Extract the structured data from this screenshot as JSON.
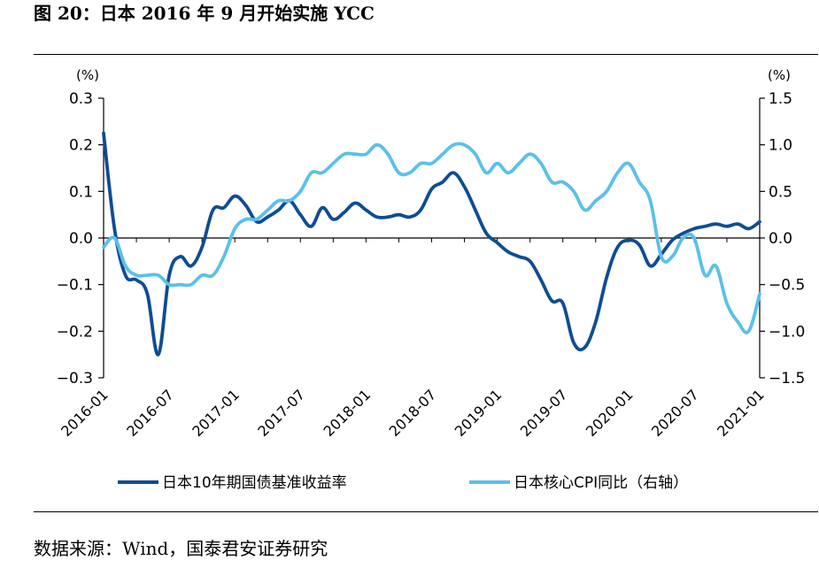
{
  "header": {
    "title": "图 20：日本 2016 年 9 月开始实施 YCC"
  },
  "footer": {
    "source": "数据来源：Wind，国泰君安证券研究"
  },
  "chart_data": {
    "type": "line",
    "title": "图 20：日本 2016 年 9 月开始实施 YCC",
    "x_tick_labels": [
      "2016-01",
      "2016-07",
      "2017-01",
      "2017-07",
      "2018-01",
      "2018-07",
      "2019-01",
      "2019-07",
      "2020-01",
      "2020-07",
      "2021-01"
    ],
    "x_range": [
      "2016-01",
      "2021-01"
    ],
    "left_axis": {
      "unit_label": "(%)",
      "ylim": [
        -0.3,
        0.3
      ],
      "tick_labels": [
        "0.3",
        "0.2",
        "0.1",
        "0.0",
        "−0.1",
        "−0.2",
        "−0.3"
      ],
      "ticks": [
        0.3,
        0.2,
        0.1,
        0.0,
        -0.1,
        -0.2,
        -0.3
      ]
    },
    "right_axis": {
      "unit_label": "(%)",
      "ylim": [
        -1.5,
        1.5
      ],
      "tick_labels": [
        "1.5",
        "1.0",
        "0.5",
        "0.0",
        "−0.5",
        "−1.0",
        "−1.5"
      ],
      "ticks": [
        1.5,
        1.0,
        0.5,
        0.0,
        -0.5,
        -1.0,
        -1.5
      ]
    },
    "legend_position": "bottom",
    "grid": false,
    "series": [
      {
        "name": "日本10年期国债基准收益率",
        "axis": "left",
        "color": "#0e4d92",
        "points": [
          [
            "2016-01",
            0.225
          ],
          [
            "2016-02",
            0.02
          ],
          [
            "2016-03",
            -0.08
          ],
          [
            "2016-04",
            -0.09
          ],
          [
            "2016-05",
            -0.12
          ],
          [
            "2016-06",
            -0.25
          ],
          [
            "2016-07",
            -0.08
          ],
          [
            "2016-08",
            -0.04
          ],
          [
            "2016-09",
            -0.06
          ],
          [
            "2016-10",
            -0.02
          ],
          [
            "2016-11",
            0.06
          ],
          [
            "2016-12",
            0.065
          ],
          [
            "2017-01",
            0.09
          ],
          [
            "2017-02",
            0.07
          ],
          [
            "2017-03",
            0.035
          ],
          [
            "2017-04",
            0.045
          ],
          [
            "2017-05",
            0.06
          ],
          [
            "2017-06",
            0.08
          ],
          [
            "2017-07",
            0.05
          ],
          [
            "2017-08",
            0.025
          ],
          [
            "2017-09",
            0.065
          ],
          [
            "2017-10",
            0.04
          ],
          [
            "2017-11",
            0.055
          ],
          [
            "2017-12",
            0.075
          ],
          [
            "2018-01",
            0.06
          ],
          [
            "2018-02",
            0.045
          ],
          [
            "2018-03",
            0.045
          ],
          [
            "2018-04",
            0.05
          ],
          [
            "2018-05",
            0.045
          ],
          [
            "2018-06",
            0.06
          ],
          [
            "2018-07",
            0.105
          ],
          [
            "2018-08",
            0.12
          ],
          [
            "2018-09",
            0.14
          ],
          [
            "2018-10",
            0.11
          ],
          [
            "2018-11",
            0.06
          ],
          [
            "2018-12",
            0.01
          ],
          [
            "2019-01",
            -0.01
          ],
          [
            "2019-02",
            -0.03
          ],
          [
            "2019-03",
            -0.04
          ],
          [
            "2019-04",
            -0.05
          ],
          [
            "2019-05",
            -0.09
          ],
          [
            "2019-06",
            -0.135
          ],
          [
            "2019-07",
            -0.14
          ],
          [
            "2019-08",
            -0.225
          ],
          [
            "2019-09",
            -0.235
          ],
          [
            "2019-10",
            -0.18
          ],
          [
            "2019-11",
            -0.085
          ],
          [
            "2019-12",
            -0.02
          ],
          [
            "2020-01",
            -0.005
          ],
          [
            "2020-02",
            -0.015
          ],
          [
            "2020-03",
            -0.06
          ],
          [
            "2020-04",
            -0.035
          ],
          [
            "2020-05",
            -0.005
          ],
          [
            "2020-06",
            0.01
          ],
          [
            "2020-07",
            0.02
          ],
          [
            "2020-08",
            0.025
          ],
          [
            "2020-09",
            0.03
          ],
          [
            "2020-10",
            0.025
          ],
          [
            "2020-11",
            0.03
          ],
          [
            "2020-12",
            0.02
          ],
          [
            "2021-01",
            0.035
          ]
        ]
      },
      {
        "name": "日本核心CPI同比（右轴）",
        "axis": "right",
        "color": "#5bc0ea",
        "points": [
          [
            "2016-01",
            -0.1
          ],
          [
            "2016-02",
            0.0
          ],
          [
            "2016-03",
            -0.3
          ],
          [
            "2016-04",
            -0.4
          ],
          [
            "2016-05",
            -0.4
          ],
          [
            "2016-06",
            -0.4
          ],
          [
            "2016-07",
            -0.5
          ],
          [
            "2016-08",
            -0.5
          ],
          [
            "2016-09",
            -0.5
          ],
          [
            "2016-10",
            -0.4
          ],
          [
            "2016-11",
            -0.4
          ],
          [
            "2016-12",
            -0.2
          ],
          [
            "2017-01",
            0.1
          ],
          [
            "2017-02",
            0.2
          ],
          [
            "2017-03",
            0.2
          ],
          [
            "2017-04",
            0.3
          ],
          [
            "2017-05",
            0.4
          ],
          [
            "2017-06",
            0.4
          ],
          [
            "2017-07",
            0.5
          ],
          [
            "2017-08",
            0.7
          ],
          [
            "2017-09",
            0.7
          ],
          [
            "2017-10",
            0.8
          ],
          [
            "2017-11",
            0.9
          ],
          [
            "2017-12",
            0.9
          ],
          [
            "2018-01",
            0.9
          ],
          [
            "2018-02",
            1.0
          ],
          [
            "2018-03",
            0.9
          ],
          [
            "2018-04",
            0.7
          ],
          [
            "2018-05",
            0.7
          ],
          [
            "2018-06",
            0.8
          ],
          [
            "2018-07",
            0.8
          ],
          [
            "2018-08",
            0.9
          ],
          [
            "2018-09",
            1.0
          ],
          [
            "2018-10",
            1.0
          ],
          [
            "2018-11",
            0.9
          ],
          [
            "2018-12",
            0.7
          ],
          [
            "2019-01",
            0.8
          ],
          [
            "2019-02",
            0.7
          ],
          [
            "2019-03",
            0.8
          ],
          [
            "2019-04",
            0.9
          ],
          [
            "2019-05",
            0.8
          ],
          [
            "2019-06",
            0.6
          ],
          [
            "2019-07",
            0.6
          ],
          [
            "2019-08",
            0.5
          ],
          [
            "2019-09",
            0.3
          ],
          [
            "2019-10",
            0.4
          ],
          [
            "2019-11",
            0.5
          ],
          [
            "2019-12",
            0.7
          ],
          [
            "2020-01",
            0.8
          ],
          [
            "2020-02",
            0.6
          ],
          [
            "2020-03",
            0.4
          ],
          [
            "2020-04",
            -0.2
          ],
          [
            "2020-05",
            -0.2
          ],
          [
            "2020-06",
            0.0
          ],
          [
            "2020-07",
            0.0
          ],
          [
            "2020-08",
            -0.4
          ],
          [
            "2020-09",
            -0.3
          ],
          [
            "2020-10",
            -0.7
          ],
          [
            "2020-11",
            -0.9
          ],
          [
            "2020-12",
            -1.0
          ],
          [
            "2021-01",
            -0.6
          ]
        ]
      }
    ]
  }
}
